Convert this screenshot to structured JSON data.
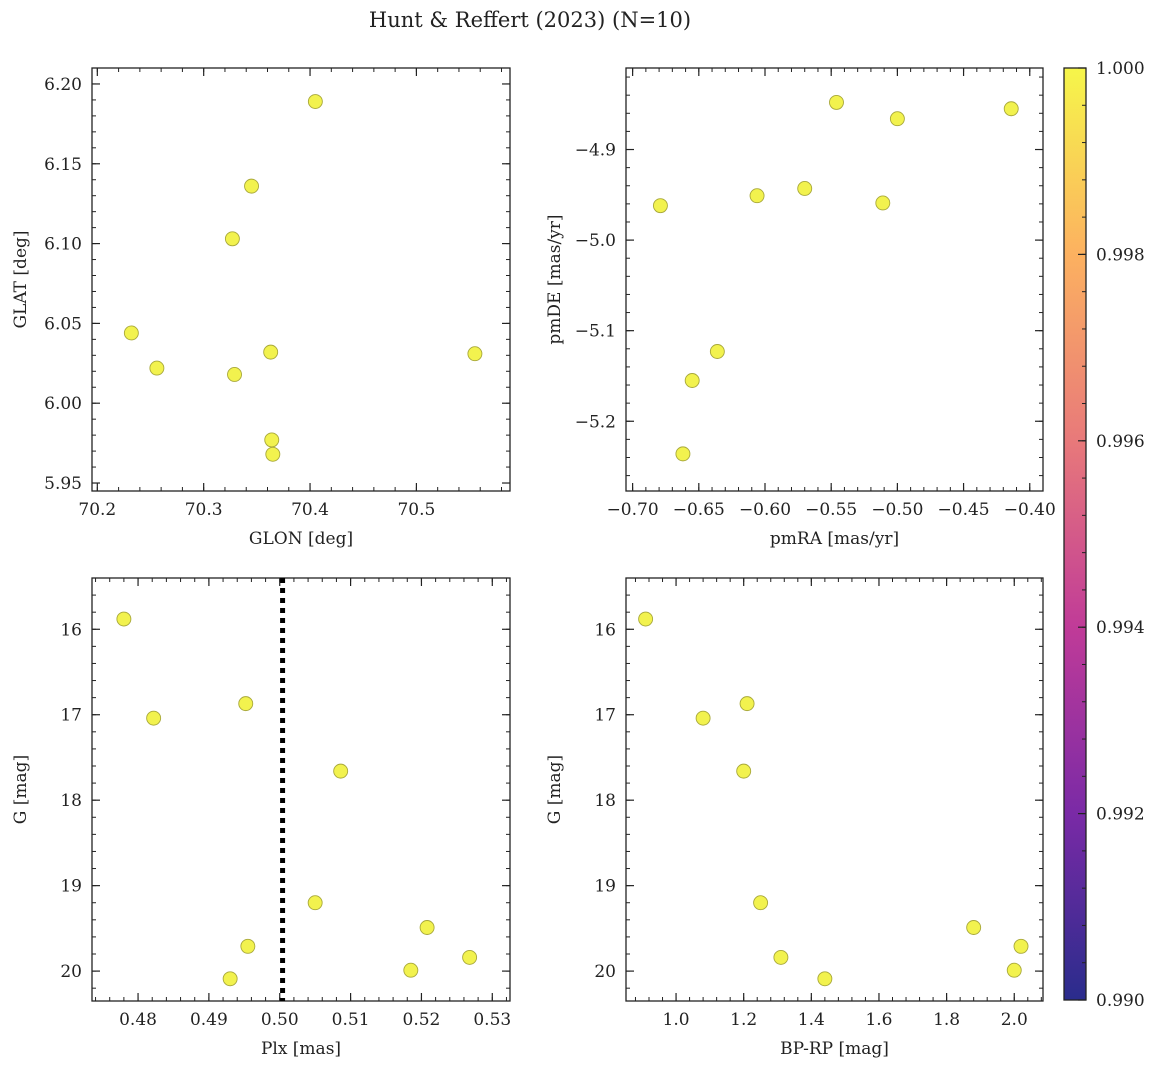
{
  "figure": {
    "title": "Hunt & Reffert (2023) (N=10)"
  },
  "colorbar": {
    "min": 0.99,
    "max": 1.0,
    "ticks": [
      "0.990",
      "0.992",
      "0.994",
      "0.996",
      "0.998",
      "1.000"
    ],
    "colormap": [
      "#2a2c8c",
      "#7a2aa6",
      "#c03b98",
      "#e8797a",
      "#fcb160",
      "#f6f64a"
    ]
  },
  "chart_data": [
    {
      "type": "scatter",
      "title": "",
      "xlabel": "GLON [deg]",
      "ylabel": "GLAT [deg]",
      "xlim": [
        70.195,
        70.588
      ],
      "ylim": [
        5.945,
        6.21
      ],
      "y_inverted": false,
      "xticks": [
        70.2,
        70.3,
        70.4,
        70.5
      ],
      "xtick_labels": [
        "70.2",
        "70.3",
        "70.4",
        "70.5"
      ],
      "yticks": [
        5.95,
        6.0,
        6.05,
        6.1,
        6.15,
        6.2
      ],
      "ytick_labels": [
        "5.95",
        "6.00",
        "6.05",
        "6.10",
        "6.15",
        "6.20"
      ],
      "x": [
        70.232,
        70.256,
        70.327,
        70.329,
        70.345,
        70.363,
        70.364,
        70.365,
        70.405,
        70.555
      ],
      "y": [
        6.044,
        6.022,
        6.103,
        6.018,
        6.136,
        6.032,
        5.977,
        5.968,
        6.189,
        6.031
      ],
      "color_values": [
        1,
        1,
        1,
        1,
        1,
        1,
        1,
        1,
        1,
        1
      ]
    },
    {
      "type": "scatter",
      "title": "",
      "xlabel": "pmRA [mas/yr]",
      "ylabel": "pmDE [mas/yr]",
      "xlim": [
        -0.705,
        -0.39
      ],
      "ylim": [
        -5.277,
        -4.81
      ],
      "y_inverted": false,
      "xticks": [
        -0.7,
        -0.65,
        -0.6,
        -0.55,
        -0.5,
        -0.45,
        -0.4
      ],
      "xtick_labels": [
        "−0.70",
        "−0.65",
        "−0.60",
        "−0.55",
        "−0.50",
        "−0.45",
        "−0.40"
      ],
      "yticks": [
        -5.2,
        -5.1,
        -5.0,
        -4.9
      ],
      "ytick_labels": [
        "−5.2",
        "−5.1",
        "−5.0",
        "−4.9"
      ],
      "x": [
        -0.679,
        -0.662,
        -0.655,
        -0.636,
        -0.606,
        -0.57,
        -0.546,
        -0.511,
        -0.5,
        -0.414
      ],
      "y": [
        -4.962,
        -5.236,
        -5.155,
        -5.123,
        -4.951,
        -4.943,
        -4.848,
        -4.959,
        -4.866,
        -4.855
      ],
      "color_values": [
        1,
        1,
        1,
        1,
        1,
        1,
        1,
        1,
        1,
        1
      ]
    },
    {
      "type": "scatter",
      "title": "",
      "xlabel": "Plx [mas]",
      "ylabel": "G [mag]",
      "xlim": [
        0.4735,
        0.5325
      ],
      "ylim": [
        20.35,
        15.4
      ],
      "y_inverted": true,
      "xticks": [
        0.48,
        0.49,
        0.5,
        0.51,
        0.52,
        0.53
      ],
      "xtick_labels": [
        "0.48",
        "0.49",
        "0.50",
        "0.51",
        "0.52",
        "0.53"
      ],
      "yticks": [
        16,
        17,
        18,
        19,
        20
      ],
      "ytick_labels": [
        "16",
        "17",
        "18",
        "19",
        "20"
      ],
      "x": [
        0.478,
        0.4822,
        0.493,
        0.4952,
        0.4955,
        0.505,
        0.5086,
        0.5185,
        0.5208,
        0.5268
      ],
      "y": [
        15.88,
        17.04,
        20.09,
        16.87,
        19.71,
        19.2,
        17.66,
        19.99,
        19.49,
        19.84
      ],
      "color_values": [
        1,
        1,
        1,
        1,
        1,
        1,
        1,
        1,
        1,
        1
      ],
      "vline": {
        "x": 0.5004,
        "style": "dotted",
        "color": "#000000"
      }
    },
    {
      "type": "scatter",
      "title": "",
      "xlabel": "BP-RP [mag]",
      "ylabel": "G [mag]",
      "xlim": [
        0.852,
        2.085
      ],
      "ylim": [
        20.35,
        15.4
      ],
      "y_inverted": true,
      "xticks": [
        1.0,
        1.2,
        1.4,
        1.6,
        1.8,
        2.0
      ],
      "xtick_labels": [
        "1.0",
        "1.2",
        "1.4",
        "1.6",
        "1.8",
        "2.0"
      ],
      "yticks": [
        16,
        17,
        18,
        19,
        20
      ],
      "ytick_labels": [
        "16",
        "17",
        "18",
        "19",
        "20"
      ],
      "x": [
        0.91,
        1.08,
        1.2,
        1.21,
        1.25,
        1.31,
        1.44,
        1.88,
        2.0,
        2.02
      ],
      "y": [
        15.88,
        17.04,
        17.66,
        16.87,
        19.2,
        19.84,
        20.09,
        19.49,
        19.99,
        19.71
      ],
      "color_values": [
        1,
        1,
        1,
        1,
        1,
        1,
        1,
        1,
        1,
        1
      ]
    }
  ],
  "marker": {
    "fill": "#f2f24e",
    "edge": "#a8a83a"
  }
}
